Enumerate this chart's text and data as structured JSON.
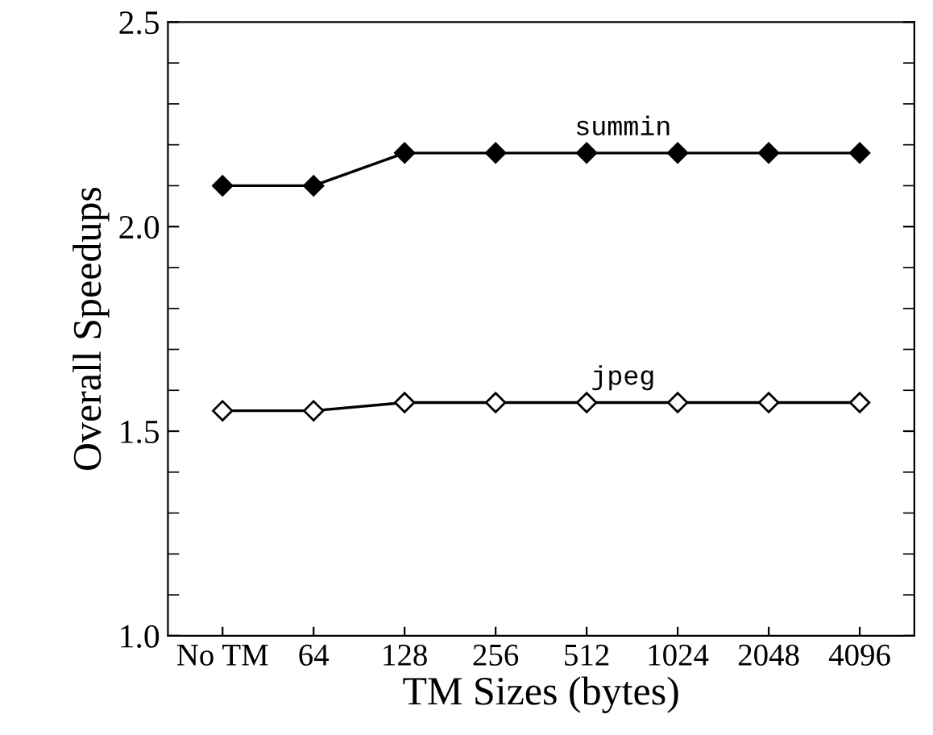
{
  "chart_data": {
    "type": "line",
    "xlabel": "TM Sizes (bytes)",
    "ylabel": "Overall Speedups",
    "categories": [
      "No TM",
      "64",
      "128",
      "256",
      "512",
      "1024",
      "2048",
      "4096"
    ],
    "series": [
      {
        "name": "summin",
        "color": "#000000",
        "marker": "diamond",
        "values": [
          2.1,
          2.1,
          2.18,
          2.18,
          2.18,
          2.18,
          2.18,
          2.18
        ]
      },
      {
        "name": "jpeg",
        "color": "#000000",
        "marker": "diamond_open",
        "values": [
          1.55,
          1.55,
          1.57,
          1.57,
          1.57,
          1.57,
          1.57,
          1.57
        ]
      }
    ],
    "ylim": [
      1.0,
      2.5
    ],
    "yticks": [
      {
        "value": 1,
        "label": "1.0"
      },
      1.5,
      {
        "value": 2,
        "label": "2.0"
      },
      2.5
    ],
    "grid": false,
    "legend": false,
    "line_style": "solid"
  }
}
